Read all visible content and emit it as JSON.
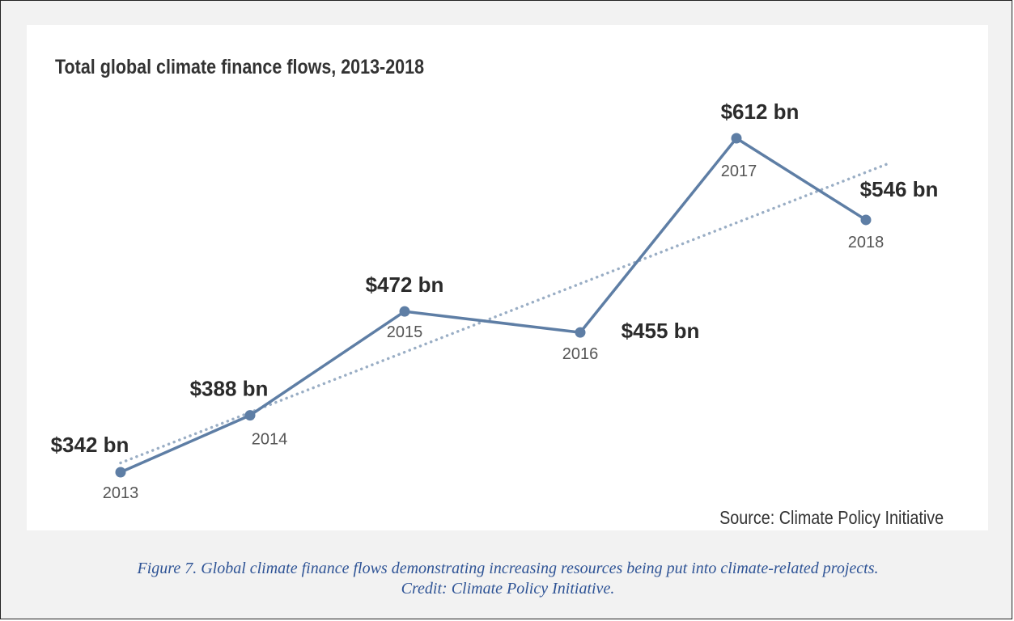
{
  "chart_data": {
    "type": "line",
    "title": "Total global climate finance flows, 2013-2018",
    "categories": [
      "2013",
      "2014",
      "2015",
      "2016",
      "2017",
      "2018"
    ],
    "series": [
      {
        "values": [
          342,
          388,
          472,
          455,
          612,
          546
        ],
        "data_labels": [
          "$342 bn",
          "$388 bn",
          "$472 bn",
          "$455 bn",
          "$612 bn",
          "$546 bn"
        ]
      }
    ],
    "trendline": true,
    "trendline_style": "dotted",
    "source": "Source: Climate Policy Initiative",
    "colors": {
      "line": "#5e7ea5",
      "trend": "#9aaec5",
      "label": "#2b2b2b",
      "year": "#555555"
    }
  },
  "caption": {
    "line1": "Figure 7. Global climate finance flows demonstrating increasing resources being put into climate-related projects.",
    "line2": "Credit: Climate Policy Initiative."
  }
}
